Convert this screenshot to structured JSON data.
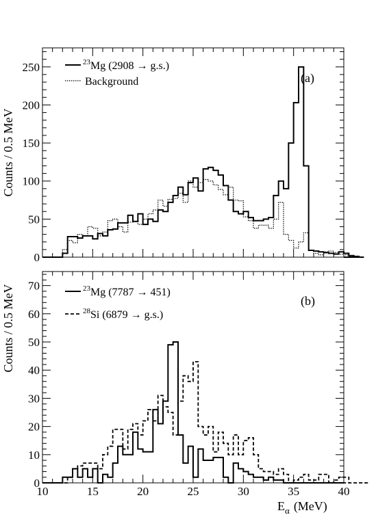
{
  "chart_data": [
    {
      "type": "histogram",
      "panel_label": "(a)",
      "ylabel": "Counts / 0.5 MeV",
      "xlim": [
        10,
        40
      ],
      "ylim": [
        0,
        275
      ],
      "yticks": [
        0,
        50,
        100,
        150,
        200,
        250
      ],
      "xticks": [
        10,
        15,
        20,
        25,
        30,
        35,
        40
      ],
      "x_tick_labels": false,
      "bin_width": 0.5,
      "legend_position": "top-left",
      "series": [
        {
          "name": "Mg (2908 → g.s.)",
          "name_superscript": "23",
          "style": "solid",
          "bins_start": 12.0,
          "values": [
            5,
            27,
            27,
            25,
            28,
            28,
            24,
            31,
            28,
            36,
            37,
            45,
            45,
            55,
            47,
            57,
            43,
            50,
            47,
            62,
            60,
            72,
            81,
            92,
            82,
            98,
            104,
            87,
            116,
            118,
            114,
            108,
            94,
            75,
            60,
            57,
            60,
            52,
            48,
            48,
            50,
            52,
            81,
            100,
            90,
            150,
            203,
            250,
            120,
            9,
            8,
            7,
            6,
            5,
            4,
            7,
            5,
            2,
            1,
            0
          ]
        },
        {
          "name": "Background",
          "style": "dotted",
          "bins_start": 12.0,
          "values": [
            10,
            22,
            19,
            30,
            28,
            40,
            38,
            28,
            33,
            48,
            50,
            40,
            33,
            46,
            47,
            43,
            50,
            57,
            62,
            75,
            67,
            76,
            77,
            84,
            72,
            100,
            92,
            98,
            102,
            100,
            95,
            89,
            82,
            92,
            75,
            74,
            53,
            48,
            38,
            42,
            42,
            38,
            50,
            72,
            30,
            22,
            12,
            20,
            32,
            9,
            5,
            3,
            7,
            8,
            6,
            4,
            3,
            1,
            0,
            0
          ]
        }
      ]
    },
    {
      "type": "histogram",
      "panel_label": "(b)",
      "ylabel": "Counts / 0.5 MeV",
      "xlabel": "E",
      "xlabel_subscript": "α",
      "xlabel_unit": "(MeV)",
      "xlim": [
        10,
        40
      ],
      "ylim": [
        0,
        75
      ],
      "yticks": [
        0,
        10,
        20,
        30,
        40,
        50,
        60,
        70
      ],
      "xticks": [
        10,
        15,
        20,
        25,
        30,
        35,
        40
      ],
      "legend_position": "top-left",
      "series": [
        {
          "name": "Mg (7787 → 451)",
          "name_superscript": "23",
          "style": "solid",
          "bins_start": 12.0,
          "values": [
            2,
            2,
            5,
            2,
            5,
            2,
            5,
            0,
            3,
            2,
            7,
            13,
            10,
            10,
            18,
            12,
            11,
            11,
            26,
            21,
            29,
            49,
            50,
            17,
            7,
            13,
            2,
            12,
            8,
            8,
            9,
            9,
            2,
            0,
            7,
            5,
            4,
            3,
            2,
            2,
            1,
            2,
            1,
            1,
            0,
            0,
            0,
            0,
            0,
            0
          ]
        },
        {
          "name": "Si (6879 → g.s.)",
          "name_superscript": "28",
          "style": "dashed",
          "bins_start": 12.0,
          "values": [
            0,
            2,
            5,
            6,
            7,
            7,
            7,
            5,
            10,
            13,
            19,
            19,
            12,
            19,
            21,
            17,
            22,
            26,
            22,
            31,
            27,
            25,
            17,
            29,
            38,
            36,
            43,
            20,
            17,
            20,
            11,
            18,
            14,
            10,
            17,
            10,
            15,
            16,
            10,
            5,
            4,
            4,
            3,
            5,
            3,
            0,
            1,
            2,
            3,
            1,
            1,
            3,
            3,
            0,
            1,
            2,
            2,
            0,
            0,
            0,
            0
          ]
        }
      ]
    }
  ]
}
